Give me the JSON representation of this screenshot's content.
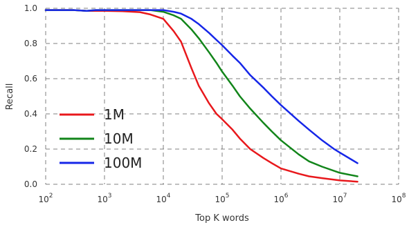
{
  "chart_data": {
    "type": "line",
    "xlabel": "Top K words",
    "ylabel": "Recall",
    "x_scale": "log",
    "xlim": [
      100,
      100000000
    ],
    "ylim": [
      0,
      1.0
    ],
    "x_ticks": [
      {
        "value": 100,
        "base": "10",
        "exp": "2"
      },
      {
        "value": 1000,
        "base": "10",
        "exp": "3"
      },
      {
        "value": 10000,
        "base": "10",
        "exp": "4"
      },
      {
        "value": 100000,
        "base": "10",
        "exp": "5"
      },
      {
        "value": 1000000,
        "base": "10",
        "exp": "6"
      },
      {
        "value": 10000000,
        "base": "10",
        "exp": "7"
      },
      {
        "value": 100000000,
        "base": "10",
        "exp": "8"
      }
    ],
    "y_ticks": [
      {
        "value": 0.0,
        "label": "0.0"
      },
      {
        "value": 0.2,
        "label": "0.2"
      },
      {
        "value": 0.4,
        "label": "0.4"
      },
      {
        "value": 0.6,
        "label": "0.6"
      },
      {
        "value": 0.8,
        "label": "0.8"
      },
      {
        "value": 1.0,
        "label": "1.0"
      }
    ],
    "grid": true,
    "legend": {
      "placement": "lower-left"
    },
    "series": [
      {
        "name": "1M",
        "color": "#e8181c",
        "x": [
          100,
          200,
          300,
          500,
          700,
          1000,
          2000,
          4000,
          6000,
          10000,
          15000,
          20000,
          30000,
          40000,
          60000,
          80000,
          100000,
          150000,
          200000,
          300000,
          500000,
          700000,
          1000000,
          2000000,
          3000000,
          5000000,
          10000000,
          20000000
        ],
        "y": [
          0.99,
          0.99,
          0.99,
          0.985,
          0.985,
          0.985,
          0.983,
          0.978,
          0.965,
          0.94,
          0.87,
          0.81,
          0.66,
          0.56,
          0.46,
          0.4,
          0.37,
          0.31,
          0.26,
          0.2,
          0.15,
          0.12,
          0.09,
          0.06,
          0.045,
          0.035,
          0.022,
          0.015
        ]
      },
      {
        "name": "10M",
        "color": "#12851a",
        "x": [
          100,
          200,
          300,
          500,
          700,
          1000,
          2000,
          4000,
          6000,
          10000,
          15000,
          20000,
          30000,
          40000,
          60000,
          80000,
          100000,
          150000,
          200000,
          300000,
          500000,
          700000,
          1000000,
          2000000,
          3000000,
          5000000,
          10000000,
          20000000
        ],
        "y": [
          0.99,
          0.99,
          0.99,
          0.985,
          0.99,
          0.99,
          0.99,
          0.99,
          0.99,
          0.98,
          0.96,
          0.94,
          0.88,
          0.83,
          0.75,
          0.69,
          0.64,
          0.56,
          0.5,
          0.43,
          0.35,
          0.3,
          0.25,
          0.17,
          0.13,
          0.1,
          0.065,
          0.045
        ]
      },
      {
        "name": "100M",
        "color": "#1526e8",
        "x": [
          100,
          200,
          300,
          500,
          700,
          1000,
          2000,
          4000,
          6000,
          10000,
          15000,
          20000,
          30000,
          40000,
          60000,
          80000,
          100000,
          150000,
          200000,
          300000,
          500000,
          700000,
          1000000,
          2000000,
          3000000,
          5000000,
          8000000,
          10000000,
          20000000
        ],
        "y": [
          0.99,
          0.99,
          0.99,
          0.985,
          0.99,
          0.99,
          0.99,
          0.99,
          0.99,
          0.99,
          0.98,
          0.97,
          0.94,
          0.91,
          0.86,
          0.82,
          0.79,
          0.73,
          0.69,
          0.62,
          0.55,
          0.5,
          0.45,
          0.36,
          0.31,
          0.25,
          0.2,
          0.18,
          0.12
        ]
      }
    ]
  }
}
